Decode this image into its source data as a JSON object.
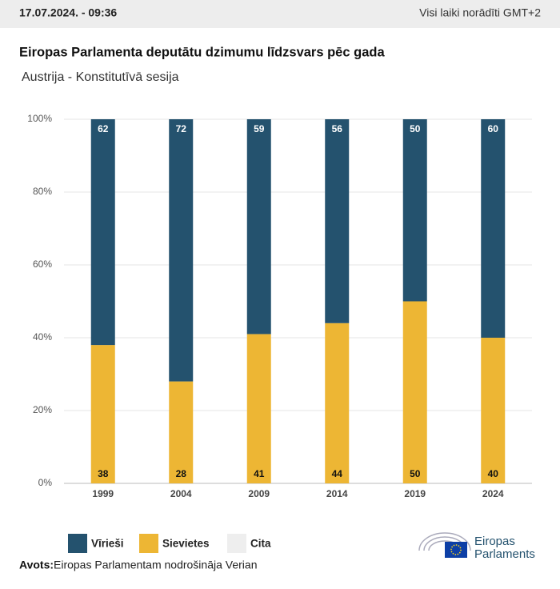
{
  "header": {
    "date": "17.07.2024. - 09:36",
    "timezone_note": "Visi laiki norādīti GMT+2"
  },
  "chart_data": {
    "type": "stacked_bar",
    "title": "Eiropas Parlamenta deputātu dzimumu līdzsvars pēc gada",
    "subtitle": "Austrija - Konstitutīvā sesija",
    "categories": [
      "1999",
      "2004",
      "2009",
      "2014",
      "2019",
      "2024"
    ],
    "series": [
      {
        "name": "Vīrieši",
        "color": "#24526e",
        "values": [
          62,
          72,
          59,
          56,
          50,
          60
        ]
      },
      {
        "name": "Sievietes",
        "color": "#edb634",
        "values": [
          38,
          28,
          41,
          44,
          50,
          40
        ]
      },
      {
        "name": "Cita",
        "color": "#eeeeee",
        "values": [
          0,
          0,
          0,
          0,
          0,
          0
        ]
      }
    ],
    "ylim": [
      0,
      100
    ],
    "yticks": [
      {
        "value": 0,
        "label": "0%"
      },
      {
        "value": 20,
        "label": "20%"
      },
      {
        "value": 40,
        "label": "40%"
      },
      {
        "value": 60,
        "label": "60%"
      },
      {
        "value": 80,
        "label": "80%"
      },
      {
        "value": 100,
        "label": "100%"
      }
    ],
    "grid": true
  },
  "footer": {
    "source_label": "Avots:",
    "source": "Eiropas Parlamentam nodrošināja Verian",
    "logo_line1": "Eiropas",
    "logo_line2": "Parlaments"
  }
}
